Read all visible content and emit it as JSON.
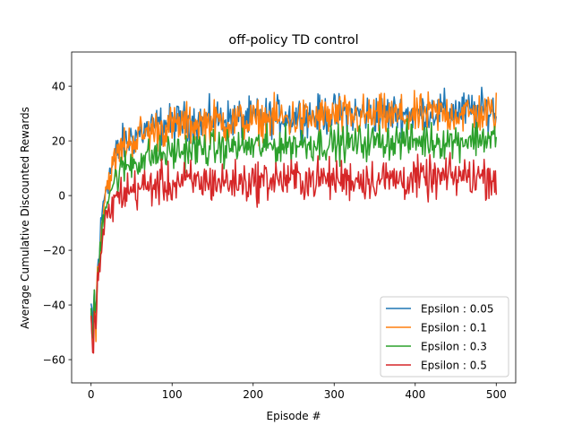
{
  "chart_data": {
    "type": "line",
    "title": "off-policy TD control",
    "xlabel": "Episode #",
    "ylabel": "Average Cumulative Discounted Rewards",
    "xlim": [
      -24,
      524
    ],
    "ylim": [
      -68.5,
      52.5
    ],
    "xticks": [
      0,
      100,
      200,
      300,
      400,
      500
    ],
    "yticks": [
      -60,
      -40,
      -20,
      0,
      20,
      40
    ],
    "grid": false,
    "legend_position": "lower-right",
    "series": [
      {
        "name": "Epsilon : 0.05",
        "color": "#1f77b4",
        "x": [
          0,
          2,
          4,
          6,
          8,
          10,
          12,
          15,
          18,
          21,
          25,
          30,
          35,
          40,
          50,
          60,
          70,
          80,
          90,
          100,
          110,
          125,
          150,
          175,
          200,
          225,
          250,
          275,
          300,
          325,
          350,
          375,
          400,
          425,
          450,
          475,
          500
        ],
        "y": [
          -40,
          -52,
          -35,
          -45,
          -27,
          -22,
          -12,
          -3,
          3,
          6,
          10,
          14,
          17,
          19,
          21,
          23,
          24,
          25,
          26,
          26,
          27,
          27,
          28,
          28,
          28,
          29,
          29,
          29,
          30,
          30,
          30,
          30,
          30,
          31,
          31,
          31,
          31
        ]
      },
      {
        "name": "Epsilon : 0.1",
        "color": "#ff7f0e",
        "x": [
          0,
          2,
          4,
          6,
          8,
          10,
          12,
          15,
          18,
          21,
          25,
          30,
          35,
          40,
          50,
          60,
          70,
          80,
          90,
          100,
          110,
          125,
          150,
          175,
          200,
          225,
          250,
          275,
          300,
          325,
          350,
          375,
          400,
          425,
          450,
          475,
          500
        ],
        "y": [
          -45,
          -55,
          -38,
          -47,
          -29,
          -24,
          -14,
          -5,
          2,
          5,
          9,
          13,
          16,
          18,
          20,
          22,
          23,
          24,
          25,
          25,
          26,
          26,
          27,
          27,
          27,
          28,
          28,
          28,
          29,
          29,
          29,
          29,
          29,
          30,
          30,
          30,
          30
        ]
      },
      {
        "name": "Epsilon : 0.3",
        "color": "#2ca02c",
        "x": [
          0,
          2,
          4,
          6,
          8,
          10,
          12,
          15,
          18,
          21,
          25,
          30,
          35,
          40,
          50,
          60,
          70,
          80,
          90,
          100,
          110,
          125,
          150,
          175,
          200,
          225,
          250,
          275,
          300,
          325,
          350,
          375,
          400,
          425,
          450,
          475,
          500
        ],
        "y": [
          -42,
          -53,
          -36,
          -46,
          -29,
          -25,
          -16,
          -8,
          -3,
          0,
          3,
          6,
          8,
          10,
          12,
          13,
          14,
          15,
          15,
          16,
          16,
          17,
          17,
          18,
          18,
          18,
          19,
          19,
          19,
          19,
          20,
          20,
          20,
          20,
          20,
          21,
          21
        ]
      },
      {
        "name": "Epsilon : 0.5",
        "color": "#d62728",
        "x": [
          0,
          2,
          4,
          6,
          8,
          10,
          12,
          15,
          18,
          21,
          25,
          30,
          35,
          40,
          50,
          60,
          70,
          80,
          90,
          100,
          110,
          125,
          150,
          175,
          200,
          225,
          250,
          275,
          300,
          325,
          350,
          375,
          400,
          425,
          450,
          475,
          500
        ],
        "y": [
          -48,
          -60,
          -40,
          -50,
          -32,
          -29,
          -21,
          -14,
          -10,
          -7,
          -4,
          -2,
          0,
          1,
          2,
          3,
          3,
          4,
          4,
          4,
          5,
          5,
          5,
          5,
          5,
          6,
          6,
          6,
          6,
          6,
          6,
          6,
          6,
          6,
          7,
          7,
          7
        ]
      }
    ]
  }
}
